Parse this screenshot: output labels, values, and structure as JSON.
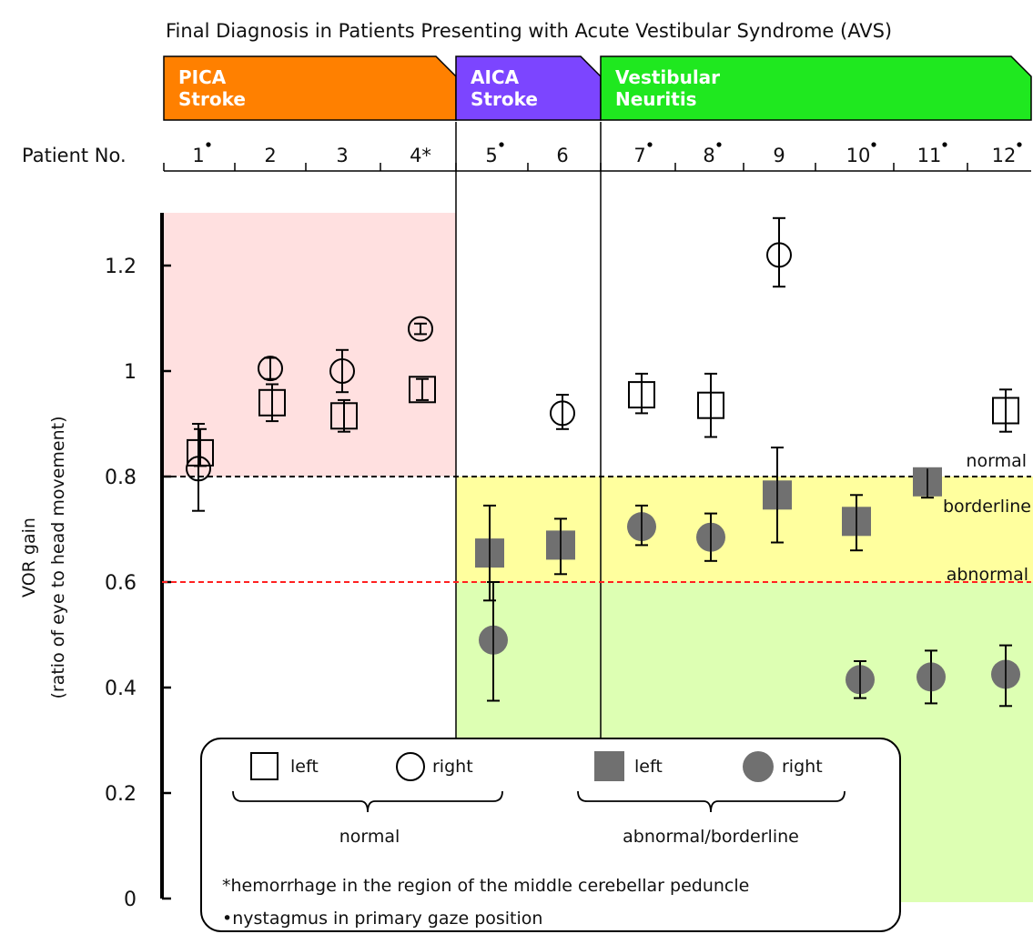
{
  "chart_data": {
    "type": "scatter",
    "title": "Final Diagnosis in Patients Presenting with Acute Vestibular Syndrome (AVS)",
    "ylabel_line1": "VOR gain",
    "ylabel_line2": "(ratio of eye to head movement)",
    "ylim": [
      0,
      1.3
    ],
    "yticks": [
      "0",
      "0.2",
      "0.4",
      "0.6",
      "0.8",
      "1",
      "1.2"
    ],
    "ytick_values": [
      0,
      0.2,
      0.4,
      0.6,
      0.8,
      1.0,
      1.2
    ],
    "xlabel": "Patient No.",
    "patients": [
      {
        "label": "1",
        "dot": true
      },
      {
        "label": "2",
        "dot": false
      },
      {
        "label": "3",
        "dot": false
      },
      {
        "label": "4*",
        "dot": false
      },
      {
        "label": "5",
        "dot": true
      },
      {
        "label": "6",
        "dot": false
      },
      {
        "label": "7",
        "dot": true
      },
      {
        "label": "8",
        "dot": true
      },
      {
        "label": "9",
        "dot": false
      },
      {
        "label": "10",
        "dot": true
      },
      {
        "label": "11",
        "dot": true
      },
      {
        "label": "12",
        "dot": true
      }
    ],
    "groups": [
      {
        "line1": "PICA",
        "line2": "Stroke",
        "color": "#ff8000",
        "patients": [
          1,
          2,
          3,
          4
        ]
      },
      {
        "line1": "AICA",
        "line2": "Stroke",
        "color": "#7c45ff",
        "patients": [
          5,
          6
        ]
      },
      {
        "line1": "Vestibular",
        "line2": "Neuritis",
        "color": "#1fe81f",
        "patients": [
          7,
          8,
          9,
          10,
          11,
          12
        ]
      }
    ],
    "thresholds": [
      {
        "value": 0.8,
        "label": "normal",
        "color": "#000000"
      },
      {
        "value": 0.6,
        "label": "abnormal",
        "color": "#ff2020"
      }
    ],
    "zone_labels": {
      "borderline": "borderline"
    },
    "zone_colors": {
      "pica_normal": "#ffe0e0",
      "borderline": "#ffff9e",
      "abnormal": "#ddffb3"
    },
    "series": [
      {
        "name": "left",
        "status": "normal",
        "marker": "open-square",
        "points": [
          {
            "patient": 1,
            "y": 0.845,
            "lo": 0.82,
            "hi": 0.89
          },
          {
            "patient": 2,
            "y": 0.94,
            "lo": 0.905,
            "hi": 0.975
          },
          {
            "patient": 3,
            "y": 0.915,
            "lo": 0.885,
            "hi": 0.945
          },
          {
            "patient": 4,
            "y": 0.965,
            "lo": 0.945,
            "hi": 0.985
          },
          {
            "patient": 7,
            "y": 0.955,
            "lo": 0.92,
            "hi": 0.995
          },
          {
            "patient": 8,
            "y": 0.935,
            "lo": 0.875,
            "hi": 0.995
          },
          {
            "patient": 12,
            "y": 0.925,
            "lo": 0.885,
            "hi": 0.965
          }
        ]
      },
      {
        "name": "right",
        "status": "normal",
        "marker": "open-circle",
        "points": [
          {
            "patient": 1,
            "y": 0.815,
            "lo": 0.735,
            "hi": 0.9
          },
          {
            "patient": 2,
            "y": 1.005,
            "lo": 0.985,
            "hi": 1.025
          },
          {
            "patient": 3,
            "y": 1.0,
            "lo": 0.96,
            "hi": 1.04
          },
          {
            "patient": 4,
            "y": 1.08,
            "lo": 1.07,
            "hi": 1.09
          },
          {
            "patient": 6,
            "y": 0.92,
            "lo": 0.89,
            "hi": 0.955
          },
          {
            "patient": 9,
            "y": 1.22,
            "lo": 1.16,
            "hi": 1.29
          }
        ]
      },
      {
        "name": "left",
        "status": "abnormal/borderline",
        "marker": "filled-square",
        "points": [
          {
            "patient": 5,
            "y": 0.655,
            "lo": 0.565,
            "hi": 0.745
          },
          {
            "patient": 6,
            "y": 0.67,
            "lo": 0.615,
            "hi": 0.72
          },
          {
            "patient": 9,
            "y": 0.765,
            "lo": 0.675,
            "hi": 0.855
          },
          {
            "patient": 10,
            "y": 0.715,
            "lo": 0.66,
            "hi": 0.765
          },
          {
            "patient": 11,
            "y": 0.79,
            "lo": 0.76,
            "hi": 0.815
          }
        ]
      },
      {
        "name": "right",
        "status": "abnormal/borderline",
        "marker": "filled-circle",
        "points": [
          {
            "patient": 5,
            "y": 0.49,
            "lo": 0.375,
            "hi": 0.6
          },
          {
            "patient": 7,
            "y": 0.705,
            "lo": 0.67,
            "hi": 0.745
          },
          {
            "patient": 8,
            "y": 0.685,
            "lo": 0.64,
            "hi": 0.73
          },
          {
            "patient": 10,
            "y": 0.415,
            "lo": 0.38,
            "hi": 0.45
          },
          {
            "patient": 11,
            "y": 0.42,
            "lo": 0.37,
            "hi": 0.47
          },
          {
            "patient": 12,
            "y": 0.425,
            "lo": 0.365,
            "hi": 0.48
          }
        ]
      }
    ],
    "legend": {
      "normal_left": "left",
      "normal_right": "right",
      "abnormal_left": "left",
      "abnormal_right": "right",
      "normal_label": "normal",
      "abnormal_label": "abnormal/borderline",
      "note1": "*hemorrhage in the region of the middle cerebellar peduncle",
      "note2": "•nystagmus in primary gaze position"
    },
    "marker_colors": {
      "filled": "#707070",
      "open_stroke": "#000000"
    }
  }
}
